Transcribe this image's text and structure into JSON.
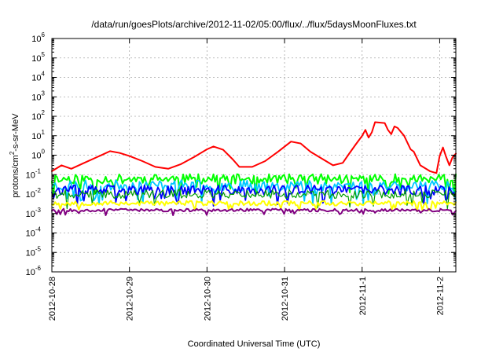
{
  "chart_data": {
    "type": "line",
    "title": "/data/run/goesPlots/archive/2012-11-02/05:00/flux/../flux/5daysMoonFluxes.txt",
    "xlabel": "Coordinated Universal Time (UTC)",
    "ylabel_parts": [
      "protons/cm",
      "2",
      "-s-sr-MeV"
    ],
    "y_scale": "log",
    "ylim_exponent": [
      -6,
      6
    ],
    "yticks": [
      {
        "base": "10",
        "exp": "6"
      },
      {
        "base": "10",
        "exp": "5"
      },
      {
        "base": "10",
        "exp": "4"
      },
      {
        "base": "10",
        "exp": "3"
      },
      {
        "base": "10",
        "exp": "2"
      },
      {
        "base": "10",
        "exp": "1"
      },
      {
        "base": "10",
        "exp": "0"
      },
      {
        "base": "10",
        "exp": "-1"
      },
      {
        "base": "10",
        "exp": "-2"
      },
      {
        "base": "10",
        "exp": "-3"
      },
      {
        "base": "10",
        "exp": "-4"
      },
      {
        "base": "10",
        "exp": "-5"
      },
      {
        "base": "10",
        "exp": "-6"
      }
    ],
    "x_start": "2012-10-28",
    "x_end": "2012-11-02 05:00",
    "xticks": [
      "2012-10-28",
      "2012-10-29",
      "2012-10-30",
      "2012-10-31",
      "2012-11-1",
      "2012-11-2"
    ],
    "grid": true,
    "series": [
      {
        "color": "#ff0000",
        "width": 2,
        "points": [
          [
            "2012-10-28 00:00",
            0.15
          ],
          [
            "2012-10-28 03:00",
            0.3
          ],
          [
            "2012-10-28 06:00",
            0.2
          ],
          [
            "2012-10-28 10:00",
            0.4
          ],
          [
            "2012-10-28 14:00",
            0.8
          ],
          [
            "2012-10-28 18:00",
            1.6
          ],
          [
            "2012-10-28 21:00",
            1.3
          ],
          [
            "2012-10-29 00:00",
            0.9
          ],
          [
            "2012-10-29 04:00",
            0.5
          ],
          [
            "2012-10-29 08:00",
            0.25
          ],
          [
            "2012-10-29 12:00",
            0.2
          ],
          [
            "2012-10-29 16:00",
            0.35
          ],
          [
            "2012-10-29 20:00",
            0.8
          ],
          [
            "2012-10-30 00:00",
            2.0
          ],
          [
            "2012-10-30 02:00",
            2.8
          ],
          [
            "2012-10-30 05:00",
            1.9
          ],
          [
            "2012-10-30 08:00",
            0.6
          ],
          [
            "2012-10-30 10:00",
            0.25
          ],
          [
            "2012-10-30 14:00",
            0.25
          ],
          [
            "2012-10-30 18:00",
            0.5
          ],
          [
            "2012-10-30 22:00",
            1.5
          ],
          [
            "2012-10-31 02:00",
            5.0
          ],
          [
            "2012-10-31 05:00",
            4.0
          ],
          [
            "2012-10-31 08:00",
            1.5
          ],
          [
            "2012-10-31 12:00",
            0.6
          ],
          [
            "2012-10-31 15:00",
            0.3
          ],
          [
            "2012-10-31 18:00",
            0.4
          ],
          [
            "2012-10-31 20:00",
            1.2
          ],
          [
            "2012-10-31 22:00",
            3.5
          ],
          [
            "2012-11-01 00:00",
            10
          ],
          [
            "2012-11-01 01:00",
            20
          ],
          [
            "2012-11-01 02:00",
            8
          ],
          [
            "2012-11-01 03:00",
            15
          ],
          [
            "2012-11-01 04:00",
            50
          ],
          [
            "2012-11-01 07:00",
            45
          ],
          [
            "2012-11-01 08:00",
            20
          ],
          [
            "2012-11-01 09:00",
            12
          ],
          [
            "2012-11-01 10:00",
            30
          ],
          [
            "2012-11-01 11:00",
            25
          ],
          [
            "2012-11-01 13:00",
            10
          ],
          [
            "2012-11-01 15:00",
            2
          ],
          [
            "2012-11-01 16:00",
            1.5
          ],
          [
            "2012-11-01 18:00",
            0.3
          ],
          [
            "2012-11-01 21:00",
            0.15
          ],
          [
            "2012-11-01 23:00",
            0.12
          ],
          [
            "2012-11-02 00:00",
            0.9
          ],
          [
            "2012-11-02 01:00",
            2.5
          ],
          [
            "2012-11-02 02:00",
            0.8
          ],
          [
            "2012-11-02 03:00",
            0.3
          ],
          [
            "2012-11-02 04:00",
            0.8
          ],
          [
            "2012-11-02 05:00",
            1.2
          ]
        ]
      }
    ],
    "bands": [
      {
        "color": "#00ff00",
        "width": 2,
        "base": 0.06,
        "amp": 0.5,
        "seed": 11
      },
      {
        "color": "#00c8ff",
        "width": 1.8,
        "base": 0.028,
        "amp": 0.55,
        "seed": 23
      },
      {
        "color": "#0000ff",
        "width": 1.8,
        "base": 0.016,
        "amp": 0.5,
        "seed": 37
      },
      {
        "color": "#00a000",
        "width": 1.2,
        "base": 0.01,
        "amp": 0.45,
        "seed": 41
      },
      {
        "color": "#ffff00",
        "width": 2,
        "base": 0.0034,
        "amp": 0.25,
        "seed": 53
      },
      {
        "color": "#800080",
        "width": 2,
        "base": 0.0015,
        "amp": 0.15,
        "seed": 67
      }
    ]
  }
}
